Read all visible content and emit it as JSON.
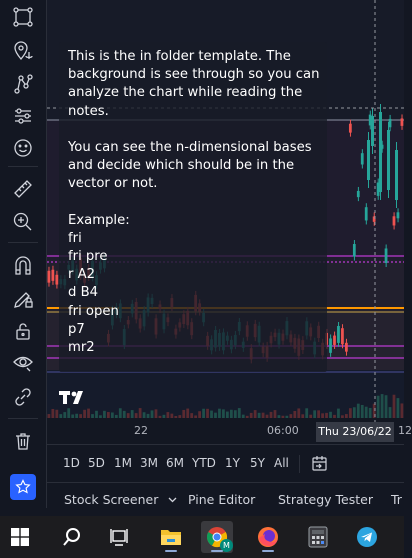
{
  "notes": {
    "lines": [
      "This is the in folder template. The",
      "background is see through so you can",
      "analyze the chart while reading the",
      "notes.",
      "",
      "You can see the n-dimensional bases",
      "and decide which should be in the",
      "vector or not.",
      "",
      "Example:",
      "fri",
      "fri pre",
      "r A2",
      "d B4",
      "fri open",
      "p7",
      "mr2"
    ]
  },
  "time_axis": {
    "tick_1": "22",
    "tick_2": "06:00",
    "crosshair_date": "Thu 23/06/22",
    "tail": "12"
  },
  "range_bar": {
    "ranges": [
      "1D",
      "5D",
      "1M",
      "3M",
      "6M",
      "YTD",
      "1Y",
      "5Y",
      "All"
    ]
  },
  "bottom_tabs": {
    "stock_screener": "Stock Screener",
    "pine_editor": "Pine Editor",
    "strategy_tester": "Strategy Tester",
    "trading_panel_cut": "Tr"
  },
  "taskbar": {
    "chrome_badge": "M"
  },
  "colors": {
    "background": "#131722",
    "candle_up": "#26a69a",
    "candle_down": "#ef5350",
    "level_orange": "#ff9800",
    "level_magenta": "#e040fb",
    "accent_blue": "#2962ff"
  },
  "icons": {
    "toolbar": [
      "crosshair-icon",
      "pin-anchor-icon",
      "node-path-icon",
      "sliders-icon",
      "smiley-icon",
      "ruler-icon",
      "zoom-in-icon",
      "magnet-icon",
      "pencil-lock-icon",
      "lock-icon",
      "eye-icon",
      "link-icon",
      "trash-icon",
      "star-icon"
    ],
    "taskbar": [
      "windows-start-icon",
      "search-icon",
      "task-view-icon",
      "file-explorer-icon",
      "chrome-icon",
      "firefox-icon",
      "calculator-icon",
      "telegram-icon"
    ]
  }
}
